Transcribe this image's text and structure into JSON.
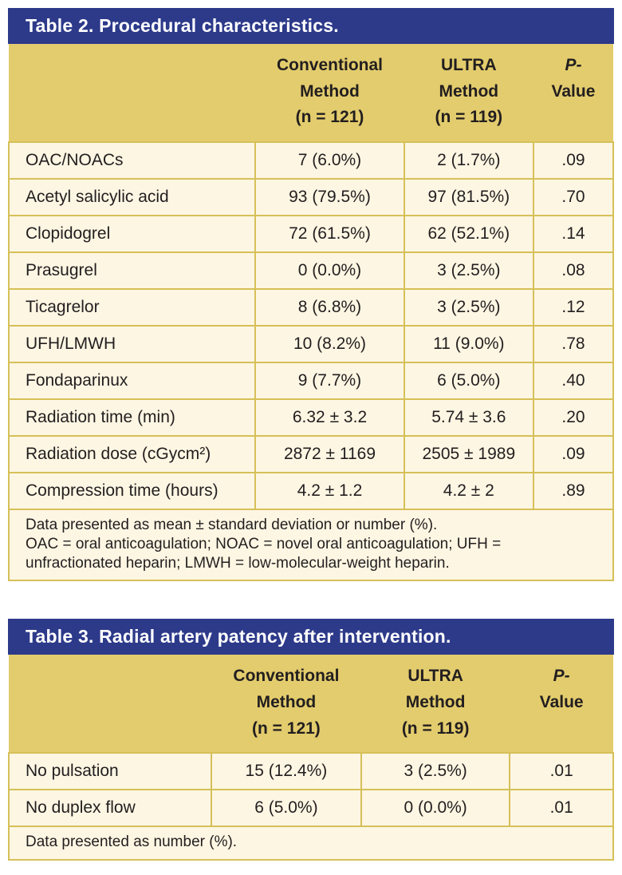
{
  "colors": {
    "title_bar_blue": "#2d3a8a",
    "header_gold": "#e3cc6d",
    "border_gold": "#d6c058",
    "cell_cream": "#fdf6e3",
    "text_dark": "#221e1f",
    "title_text_white": "#ffffff"
  },
  "tables": [
    {
      "title": "Table 2. Procedural characteristics.",
      "col_headers": {
        "label": "",
        "conventional": "Conventional\nMethod\n(n = 121)",
        "ultra": "ULTRA\nMethod\n(n = 119)",
        "p_line1": "P-",
        "p_line2": "Value"
      },
      "rows": [
        [
          "OAC/NOACs",
          "7 (6.0%)",
          "2 (1.7%)",
          ".09"
        ],
        [
          "Acetyl salicylic acid",
          "93 (79.5%)",
          "97 (81.5%)",
          ".70"
        ],
        [
          "Clopidogrel",
          "72 (61.5%)",
          "62 (52.1%)",
          ".14"
        ],
        [
          "Prasugrel",
          "0 (0.0%)",
          "3 (2.5%)",
          ".08"
        ],
        [
          "Ticagrelor",
          "8 (6.8%)",
          "3 (2.5%)",
          ".12"
        ],
        [
          "UFH/LMWH",
          "10 (8.2%)",
          "11 (9.0%)",
          ".78"
        ],
        [
          "Fondaparinux",
          "9 (7.7%)",
          "6 (5.0%)",
          ".40"
        ],
        [
          "Radiation time (min)",
          "6.32 ± 3.2",
          "5.74 ± 3.6",
          ".20"
        ],
        [
          "Radiation dose (cGycm²)",
          "2872 ± 1169",
          "2505 ± 1989",
          ".09"
        ],
        [
          "Compression time (hours)",
          "4.2 ± 1.2",
          "4.2 ± 2",
          ".89"
        ]
      ],
      "footnote": "Data presented as mean ± standard deviation or number (%).\nOAC = oral anticoagulation; NOAC = novel oral anticoagulation; UFH = unfractionated heparin; LMWH = low-molecular-weight heparin."
    },
    {
      "title": "Table 3. Radial artery patency after intervention.",
      "col_headers": {
        "label": "",
        "conventional": "Conventional\nMethod\n(n = 121)",
        "ultra": "ULTRA\nMethod\n(n = 119)",
        "p_line1": "P-",
        "p_line2": "Value"
      },
      "rows": [
        [
          "No pulsation",
          "15 (12.4%)",
          "3 (2.5%)",
          ".01"
        ],
        [
          "No duplex flow",
          "6 (5.0%)",
          "0 (0.0%)",
          ".01"
        ]
      ],
      "footnote": "Data presented as number (%)."
    }
  ]
}
